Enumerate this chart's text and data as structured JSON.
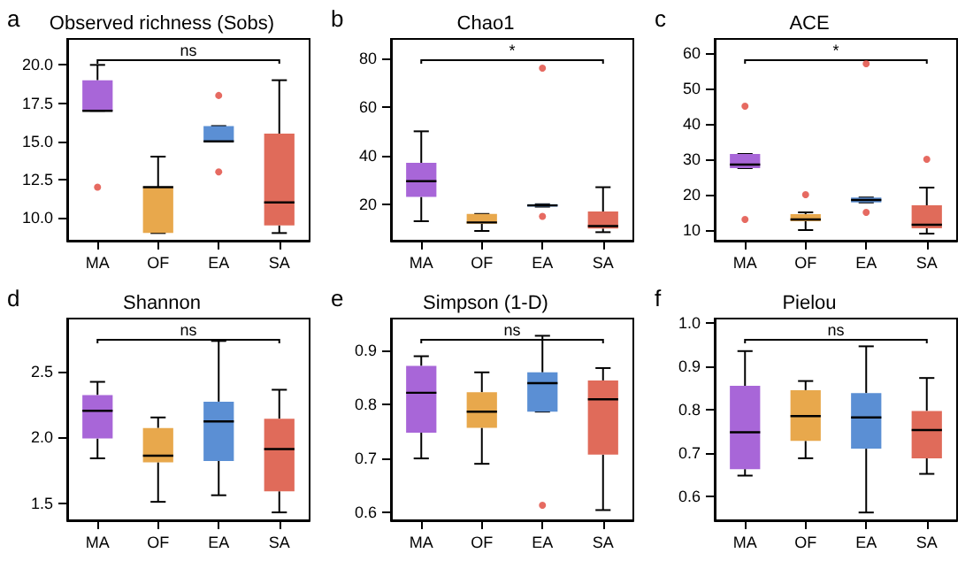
{
  "chart_data": [
    {
      "type": "box",
      "title": "Observed richness (Sobs)",
      "annotations": [
        "a",
        "ns"
      ],
      "categories": [
        "MA",
        "OF",
        "EA",
        "SA"
      ],
      "colors": [
        "#a866d8",
        "#e8a84c",
        "#5b8fd4",
        "#e06b5a"
      ],
      "ylim": [
        8.5,
        21.7
      ],
      "yticks": [
        {
          "value": 10,
          "label": "10.0"
        },
        12.5,
        {
          "value": 15,
          "label": "15.0"
        },
        17.5,
        {
          "value": 20,
          "label": "20.0"
        }
      ],
      "boxes": [
        {
          "low": 17,
          "q1": 17,
          "median": 17,
          "q3": 19,
          "high": 20,
          "outliers": [
            12
          ]
        },
        {
          "low": 9,
          "q1": 9,
          "median": 12,
          "q3": 12,
          "high": 14
        },
        {
          "low": 15,
          "q1": 15,
          "median": 15,
          "q3": 16,
          "high": 16,
          "outliers": [
            18,
            13
          ]
        },
        {
          "low": 9,
          "q1": 9.5,
          "median": 11,
          "q3": 15.5,
          "high": 19
        }
      ]
    },
    {
      "type": "box",
      "title": "Chao1",
      "annotations": [
        "b",
        "*"
      ],
      "categories": [
        "MA",
        "OF",
        "EA",
        "SA"
      ],
      "colors": [
        "#a866d8",
        "#e8a84c",
        "#5b8fd4",
        "#e06b5a"
      ],
      "ylim": [
        5,
        88
      ],
      "yticks": [
        20,
        40,
        60,
        80
      ],
      "boxes": [
        {
          "low": 13,
          "q1": 23,
          "median": 29.5,
          "q3": 37,
          "high": 50
        },
        {
          "low": 9,
          "q1": 12,
          "median": 12.5,
          "q3": 16,
          "high": 16
        },
        {
          "low": 19,
          "q1": 19,
          "median": 19.5,
          "q3": 20,
          "high": 20,
          "outliers": [
            76,
            15
          ]
        },
        {
          "low": 8.5,
          "q1": 10,
          "median": 11,
          "q3": 17,
          "high": 27
        }
      ]
    },
    {
      "type": "box",
      "title": "ACE",
      "annotations": [
        "c",
        "*"
      ],
      "categories": [
        "MA",
        "OF",
        "EA",
        "SA"
      ],
      "colors": [
        "#a866d8",
        "#e8a84c",
        "#5b8fd4",
        "#e06b5a"
      ],
      "ylim": [
        7,
        64
      ],
      "yticks": [
        10,
        20,
        30,
        40,
        50,
        60
      ],
      "boxes": [
        {
          "low": 27.5,
          "q1": 27.5,
          "median": 28.5,
          "q3": 31.5,
          "high": 31.5,
          "outliers": [
            45,
            13
          ]
        },
        {
          "low": 10,
          "q1": 12.5,
          "median": 13,
          "q3": 14.5,
          "high": 15,
          "outliers": [
            20
          ]
        },
        {
          "low": 17.8,
          "q1": 17.8,
          "median": 18.5,
          "q3": 19.2,
          "high": 19.2,
          "outliers": [
            57,
            15
          ]
        },
        {
          "low": 9,
          "q1": 10.5,
          "median": 11.5,
          "q3": 17,
          "high": 22,
          "outliers": [
            30
          ]
        }
      ]
    },
    {
      "type": "box",
      "title": "Shannon",
      "annotations": [
        "d",
        "ns"
      ],
      "categories": [
        "MA",
        "OF",
        "EA",
        "SA"
      ],
      "colors": [
        "#a866d8",
        "#e8a84c",
        "#5b8fd4",
        "#e06b5a"
      ],
      "ylim": [
        1.37,
        2.9
      ],
      "yticks": [
        1.5,
        {
          "value": 2,
          "label": "2.0"
        },
        2.5
      ],
      "boxes": [
        {
          "low": 1.84,
          "q1": 1.99,
          "median": 2.2,
          "q3": 2.32,
          "high": 2.42
        },
        {
          "low": 1.51,
          "q1": 1.81,
          "median": 1.86,
          "q3": 2.07,
          "high": 2.15
        },
        {
          "low": 1.56,
          "q1": 1.82,
          "median": 2.12,
          "q3": 2.27,
          "high": 2.73
        },
        {
          "low": 1.43,
          "q1": 1.59,
          "median": 1.91,
          "q3": 2.14,
          "high": 2.36
        }
      ]
    },
    {
      "type": "box",
      "title": "Simpson (1-D)",
      "annotations": [
        "e",
        "ns"
      ],
      "categories": [
        "MA",
        "OF",
        "EA",
        "SA"
      ],
      "colors": [
        "#a866d8",
        "#e8a84c",
        "#5b8fd4",
        "#e06b5a"
      ],
      "ylim": [
        0.585,
        0.96
      ],
      "yticks": [
        0.6,
        0.7,
        0.8,
        0.9
      ],
      "boxes": [
        {
          "low": 0.7,
          "q1": 0.748,
          "median": 0.822,
          "q3": 0.872,
          "high": 0.89
        },
        {
          "low": 0.69,
          "q1": 0.757,
          "median": 0.787,
          "q3": 0.823,
          "high": 0.86
        },
        {
          "low": 0.787,
          "q1": 0.787,
          "median": 0.84,
          "q3": 0.86,
          "high": 0.928,
          "outliers": [
            0.613
          ]
        },
        {
          "low": 0.604,
          "q1": 0.707,
          "median": 0.81,
          "q3": 0.845,
          "high": 0.868
        }
      ]
    },
    {
      "type": "box",
      "title": "Pielou",
      "annotations": [
        "f",
        "ns"
      ],
      "categories": [
        "MA",
        "OF",
        "EA",
        "SA"
      ],
      "colors": [
        "#a866d8",
        "#e8a84c",
        "#5b8fd4",
        "#e06b5a"
      ],
      "ylim": [
        0.545,
        1.01
      ],
      "yticks": [
        0.6,
        0.7,
        0.8,
        0.9,
        {
          "value": 1,
          "label": "1.0"
        }
      ],
      "boxes": [
        {
          "low": 0.648,
          "q1": 0.663,
          "median": 0.748,
          "q3": 0.855,
          "high": 0.935
        },
        {
          "low": 0.688,
          "q1": 0.728,
          "median": 0.785,
          "q3": 0.845,
          "high": 0.866
        },
        {
          "low": 0.563,
          "q1": 0.71,
          "median": 0.782,
          "q3": 0.838,
          "high": 0.946
        },
        {
          "low": 0.652,
          "q1": 0.688,
          "median": 0.753,
          "q3": 0.797,
          "high": 0.873
        }
      ]
    }
  ]
}
